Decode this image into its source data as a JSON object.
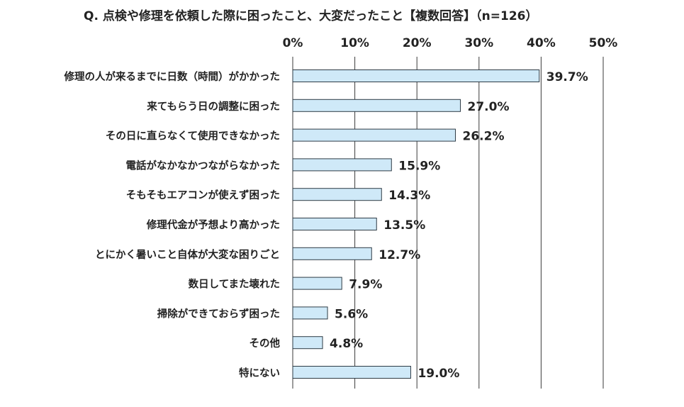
{
  "title": "Q. 点検や修理を依頼した際に困ったこと、大変だったこと【複数回答】（n=126）",
  "colors": {
    "bar_fill": "#cfe9f8",
    "bar_stroke": "#2e3b45",
    "grid": "#3a3a3a",
    "text": "#222222"
  },
  "chart_data": {
    "type": "bar",
    "orientation": "horizontal",
    "title": "Q. 点検や修理を依頼した際に困ったこと、大変だったこと【複数回答】（n=126）",
    "xlim": [
      0,
      50
    ],
    "x_ticks": [
      0,
      10,
      20,
      30,
      40,
      50
    ],
    "x_tick_labels": [
      "0%",
      "10%",
      "20%",
      "30%",
      "40%",
      "50%"
    ],
    "axis_position": "top",
    "grid": true,
    "categories": [
      "修理の人が来るまでに日数（時間）がかかった",
      "来てもらう日の調整に困った",
      "その日に直らなくて使用できなかった",
      "電話がなかなかつながらなかった",
      "そもそもエアコンが使えず困った",
      "修理代金が予想より高かった",
      "とにかく暑いこと自体が大変な困りごと",
      "数日してまた壊れた",
      "掃除ができておらず困った",
      "その他",
      "特にない"
    ],
    "values": [
      39.7,
      27.0,
      26.2,
      15.9,
      14.3,
      13.5,
      12.7,
      7.9,
      5.6,
      4.8,
      19.0
    ],
    "value_labels": [
      "39.7%",
      "27.0%",
      "26.2%",
      "15.9%",
      "14.3%",
      "13.5%",
      "12.7%",
      "7.9%",
      "5.6%",
      "4.8%",
      "19.0%"
    ]
  }
}
